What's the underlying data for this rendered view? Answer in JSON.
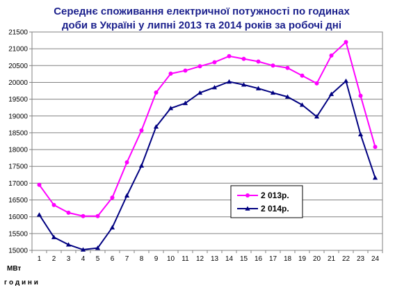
{
  "chart_data": {
    "type": "line",
    "title_lines": [
      "Середнє споживання електричної потужності по годинах",
      "доби в Україні у липні 2013 та 2014 років за робочі дні"
    ],
    "ylabel": "МВт",
    "xlabel": "г о д и н и",
    "x": [
      "1",
      "2",
      "3",
      "4",
      "5",
      "6",
      "7",
      "8",
      "9",
      "10",
      "11",
      "12",
      "13",
      "14",
      "15",
      "16",
      "17",
      "18",
      "19",
      "20",
      "21",
      "22",
      "23",
      "24"
    ],
    "yticks": [
      15000,
      15500,
      16000,
      16500,
      17000,
      17500,
      18000,
      18500,
      19000,
      19500,
      20000,
      20500,
      21000,
      21500
    ],
    "ylim": [
      15000,
      21500
    ],
    "grid": true,
    "legend_position": "right-center",
    "series": [
      {
        "name": "2 013р.",
        "color": "#ff00ff",
        "marker": "circle",
        "values": [
          16950,
          16350,
          16120,
          16020,
          16020,
          16570,
          17620,
          18570,
          19700,
          20260,
          20350,
          20480,
          20600,
          20780,
          20700,
          20620,
          20500,
          20430,
          20200,
          19970,
          20800,
          21200,
          19600,
          18080
        ]
      },
      {
        "name": "2 014р.",
        "color": "#000080",
        "marker": "triangle",
        "values": [
          16060,
          15390,
          15170,
          15020,
          15070,
          15680,
          16630,
          17520,
          18680,
          19230,
          19380,
          19690,
          19850,
          20020,
          19930,
          19820,
          19690,
          19570,
          19330,
          18980,
          19650,
          20040,
          18450,
          17160
        ]
      }
    ]
  }
}
